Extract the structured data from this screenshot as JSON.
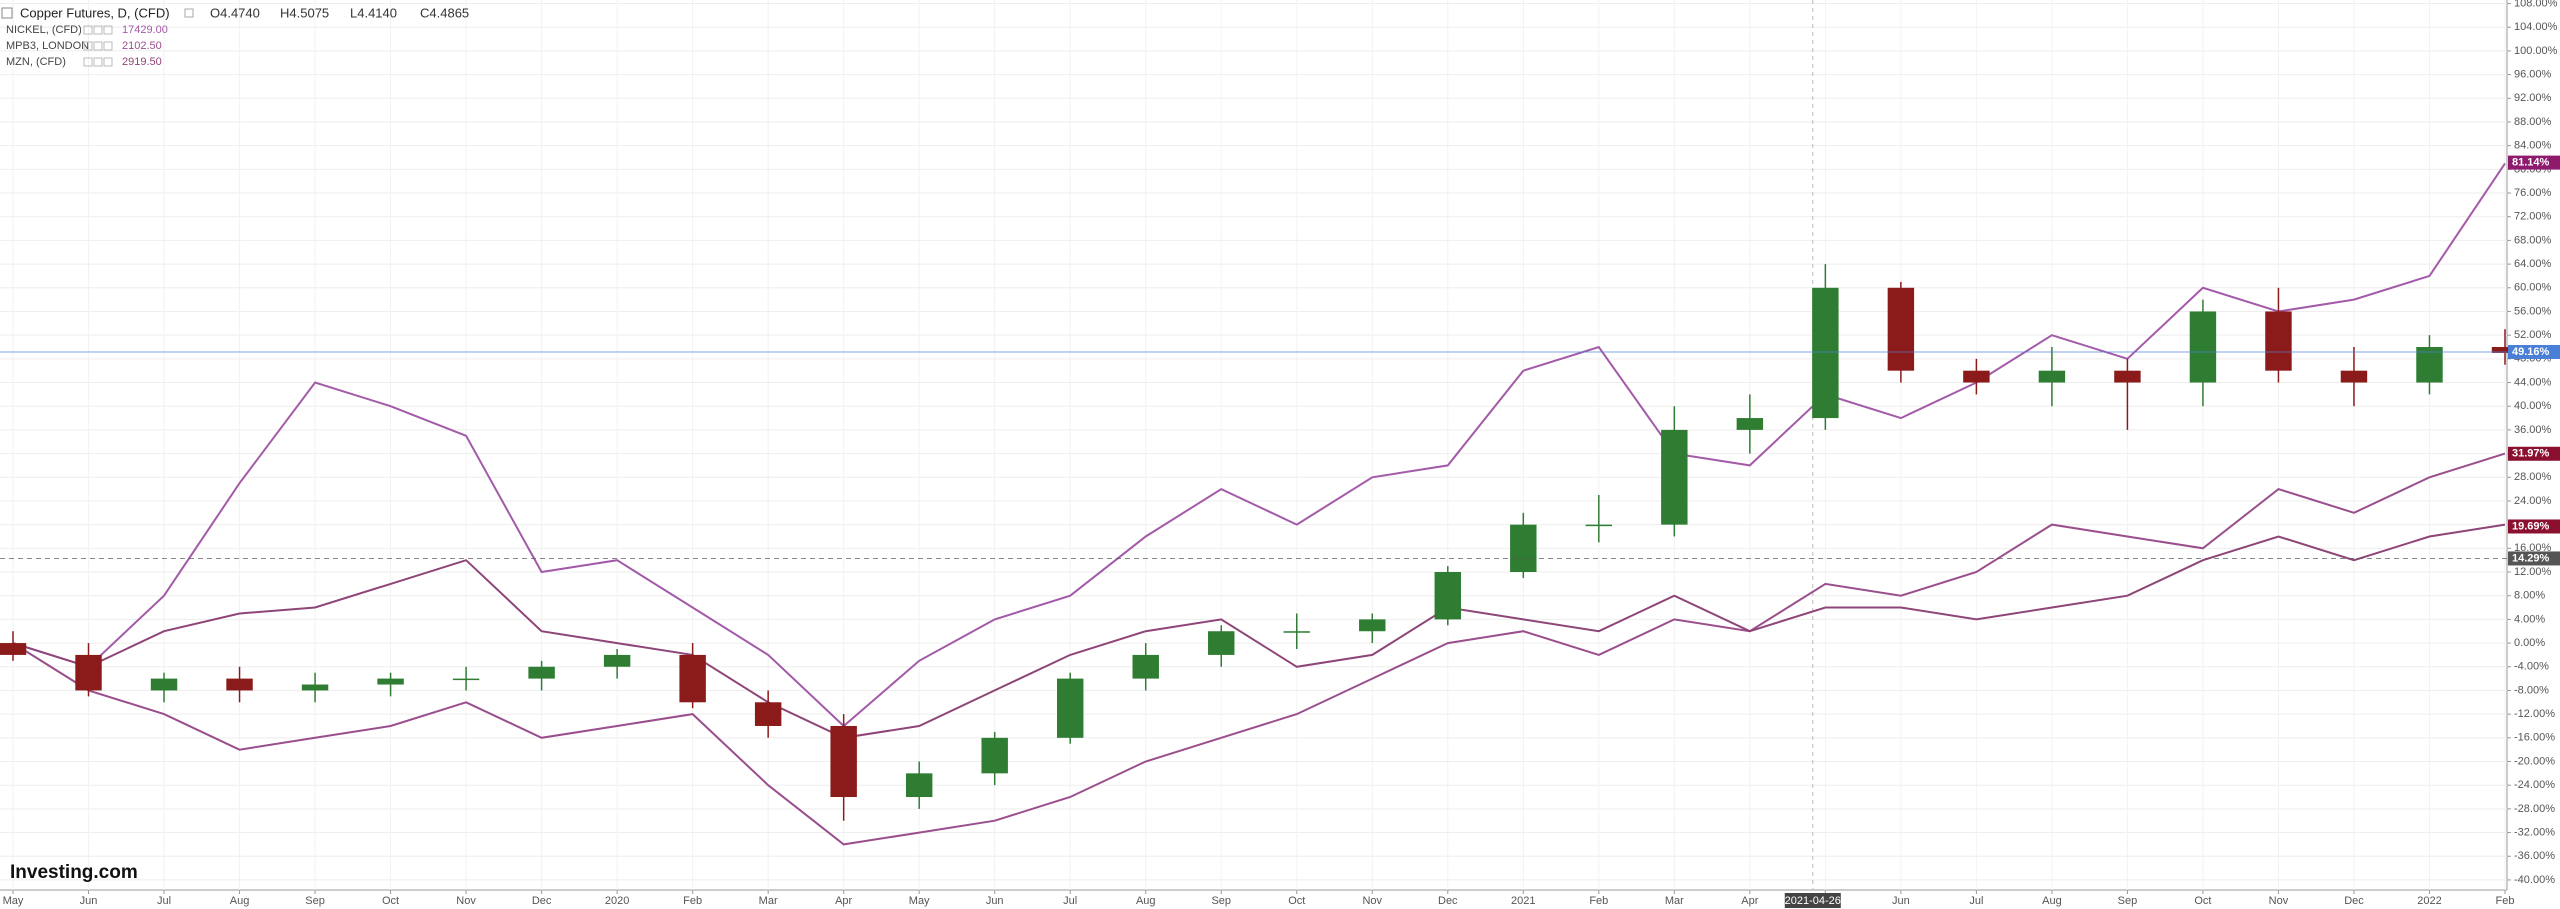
{
  "chart_data": {
    "type": "candlestick",
    "title": "Copper Futures, D, (CFD)",
    "ohlc_text": [
      "O4.4740",
      "H4.5075",
      "L4.4140",
      "C4.4865"
    ],
    "watermark": "Investing.com",
    "crosshair_label": "2021-04-26",
    "categories": [
      "May",
      "Jun",
      "Jul",
      "Aug",
      "Sep",
      "Oct",
      "Nov",
      "Dec",
      "2020",
      "Feb",
      "Mar",
      "Apr",
      "May",
      "Jun",
      "Jul",
      "Aug",
      "Sep",
      "Oct",
      "Nov",
      "Dec",
      "2021",
      "Feb",
      "Mar",
      "Apr",
      "May",
      "Jun",
      "Jul",
      "Aug",
      "Sep",
      "Oct",
      "Nov",
      "Dec",
      "2022",
      "Feb"
    ],
    "ohlc": {
      "up_color": "#2e7d32",
      "down_color": "#8b1a1a",
      "open": [
        0,
        -2,
        -8,
        -6,
        -8,
        -7,
        -6,
        -6,
        -4,
        -2,
        -10,
        -14,
        -26,
        -22,
        -16,
        -6,
        -2,
        2,
        2,
        4,
        12,
        20,
        20,
        36,
        38,
        60,
        46,
        44,
        46,
        44,
        56,
        46,
        44,
        50
      ],
      "high": [
        2,
        0,
        -5,
        -4,
        -5,
        -5,
        -4,
        -3,
        -1,
        0,
        -8,
        -12,
        -20,
        -15,
        -5,
        0,
        3,
        5,
        5,
        13,
        22,
        25,
        40,
        42,
        64,
        61,
        48,
        50,
        48,
        58,
        60,
        50,
        52,
        53
      ],
      "low": [
        -3,
        -9,
        -10,
        -10,
        -10,
        -9,
        -8,
        -8,
        -6,
        -11,
        -16,
        -30,
        -28,
        -24,
        -17,
        -8,
        -4,
        -1,
        0,
        3,
        11,
        17,
        18,
        32,
        36,
        44,
        42,
        40,
        36,
        40,
        44,
        40,
        42,
        47
      ],
      "close": [
        -2,
        -8,
        -6,
        -8,
        -7,
        -6,
        -6,
        -4,
        -2,
        -10,
        -14,
        -26,
        -22,
        -16,
        -6,
        -2,
        2,
        2,
        4,
        12,
        20,
        20,
        36,
        38,
        60,
        46,
        44,
        46,
        44,
        56,
        46,
        44,
        50,
        49
      ]
    },
    "series": [
      {
        "name": "NICKEL, (CFD)",
        "legend_value": "17429.00",
        "color": "#a35aa8",
        "values": [
          0,
          -4,
          8,
          27,
          44,
          40,
          35,
          12,
          14,
          6,
          -2,
          -14,
          -3,
          4,
          8,
          18,
          26,
          20,
          28,
          30,
          46,
          50,
          32,
          30,
          42,
          38,
          44,
          52,
          48,
          60,
          56,
          58,
          62,
          81
        ]
      },
      {
        "name": "MPB3, LONDON",
        "legend_value": "2102.50",
        "color": "#9a4f8c",
        "values": [
          0,
          -8,
          -12,
          -18,
          -16,
          -14,
          -10,
          -16,
          -14,
          -12,
          -24,
          -34,
          -32,
          -30,
          -26,
          -20,
          -16,
          -12,
          -6,
          0,
          2,
          -2,
          4,
          2,
          10,
          8,
          12,
          20,
          18,
          16,
          26,
          22,
          28,
          32
        ]
      },
      {
        "name": "MZN, (CFD)",
        "legend_value": "2919.50",
        "color": "#8e4577",
        "values": [
          0,
          -4,
          2,
          5,
          6,
          10,
          14,
          2,
          0,
          -2,
          -10,
          -16,
          -14,
          -8,
          -2,
          2,
          4,
          -4,
          -2,
          6,
          4,
          2,
          8,
          2,
          6,
          6,
          4,
          6,
          8,
          14,
          18,
          14,
          18,
          20
        ]
      }
    ],
    "ylim": [
      -41.7,
      108.6
    ],
    "yticks": [
      {
        "value": 108,
        "label": "108.00%"
      },
      {
        "value": 104,
        "label": "104.00%"
      },
      {
        "value": 100,
        "label": "100.00%"
      },
      {
        "value": 96,
        "label": "96.00%"
      },
      {
        "value": 92,
        "label": "92.00%"
      },
      {
        "value": 88,
        "label": "88.00%"
      },
      {
        "value": 84,
        "label": "84.00%"
      },
      {
        "value": 80,
        "label": "80.00%"
      },
      {
        "value": 76,
        "label": "76.00%"
      },
      {
        "value": 72,
        "label": "72.00%"
      },
      {
        "value": 68,
        "label": "68.00%"
      },
      {
        "value": 64,
        "label": "64.00%"
      },
      {
        "value": 60,
        "label": "60.00%"
      },
      {
        "value": 56,
        "label": "56.00%"
      },
      {
        "value": 52,
        "label": "52.00%"
      },
      {
        "value": 48,
        "label": "48.00%"
      },
      {
        "value": 44,
        "label": "44.00%"
      },
      {
        "value": 40,
        "label": "40.00%"
      },
      {
        "value": 36,
        "label": "36.00%"
      },
      {
        "value": 32,
        "label": "32.00%"
      },
      {
        "value": 28,
        "label": "28.00%"
      },
      {
        "value": 24,
        "label": "24.00%"
      },
      {
        "value": 20,
        "label": "20.00%"
      },
      {
        "value": 16,
        "label": "16.00%"
      },
      {
        "value": 12,
        "label": "12.00%"
      },
      {
        "value": 8,
        "label": "8.00%"
      },
      {
        "value": 4,
        "label": "4.00%"
      },
      {
        "value": 0,
        "label": "0.00%"
      },
      {
        "value": -4,
        "label": "-4.00%"
      },
      {
        "value": -8,
        "label": "-8.00%"
      },
      {
        "value": -12,
        "label": "-12.00%"
      },
      {
        "value": -16,
        "label": "-16.00%"
      },
      {
        "value": -20,
        "label": "-20.00%"
      },
      {
        "value": -24,
        "label": "-24.00%"
      },
      {
        "value": -28,
        "label": "-28.00%"
      },
      {
        "value": -32,
        "label": "-32.00%"
      },
      {
        "value": -36,
        "label": "-36.00%"
      },
      {
        "value": -40,
        "label": "-40.00%"
      }
    ],
    "grid": true,
    "price_tags": [
      {
        "value": 81.14,
        "label": "81.14%",
        "color": "#8e1a6e",
        "line": false
      },
      {
        "value": 49.16,
        "label": "49.16%",
        "color": "#4a7fd8",
        "line": true
      },
      {
        "value": 31.97,
        "label": "31.97%",
        "color": "#8b1030",
        "line": false
      },
      {
        "value": 19.69,
        "label": "19.69%",
        "color": "#8b1030",
        "line": false
      },
      {
        "value": 14.29,
        "label": "14.29%",
        "color": "#555555",
        "line": true
      }
    ]
  }
}
